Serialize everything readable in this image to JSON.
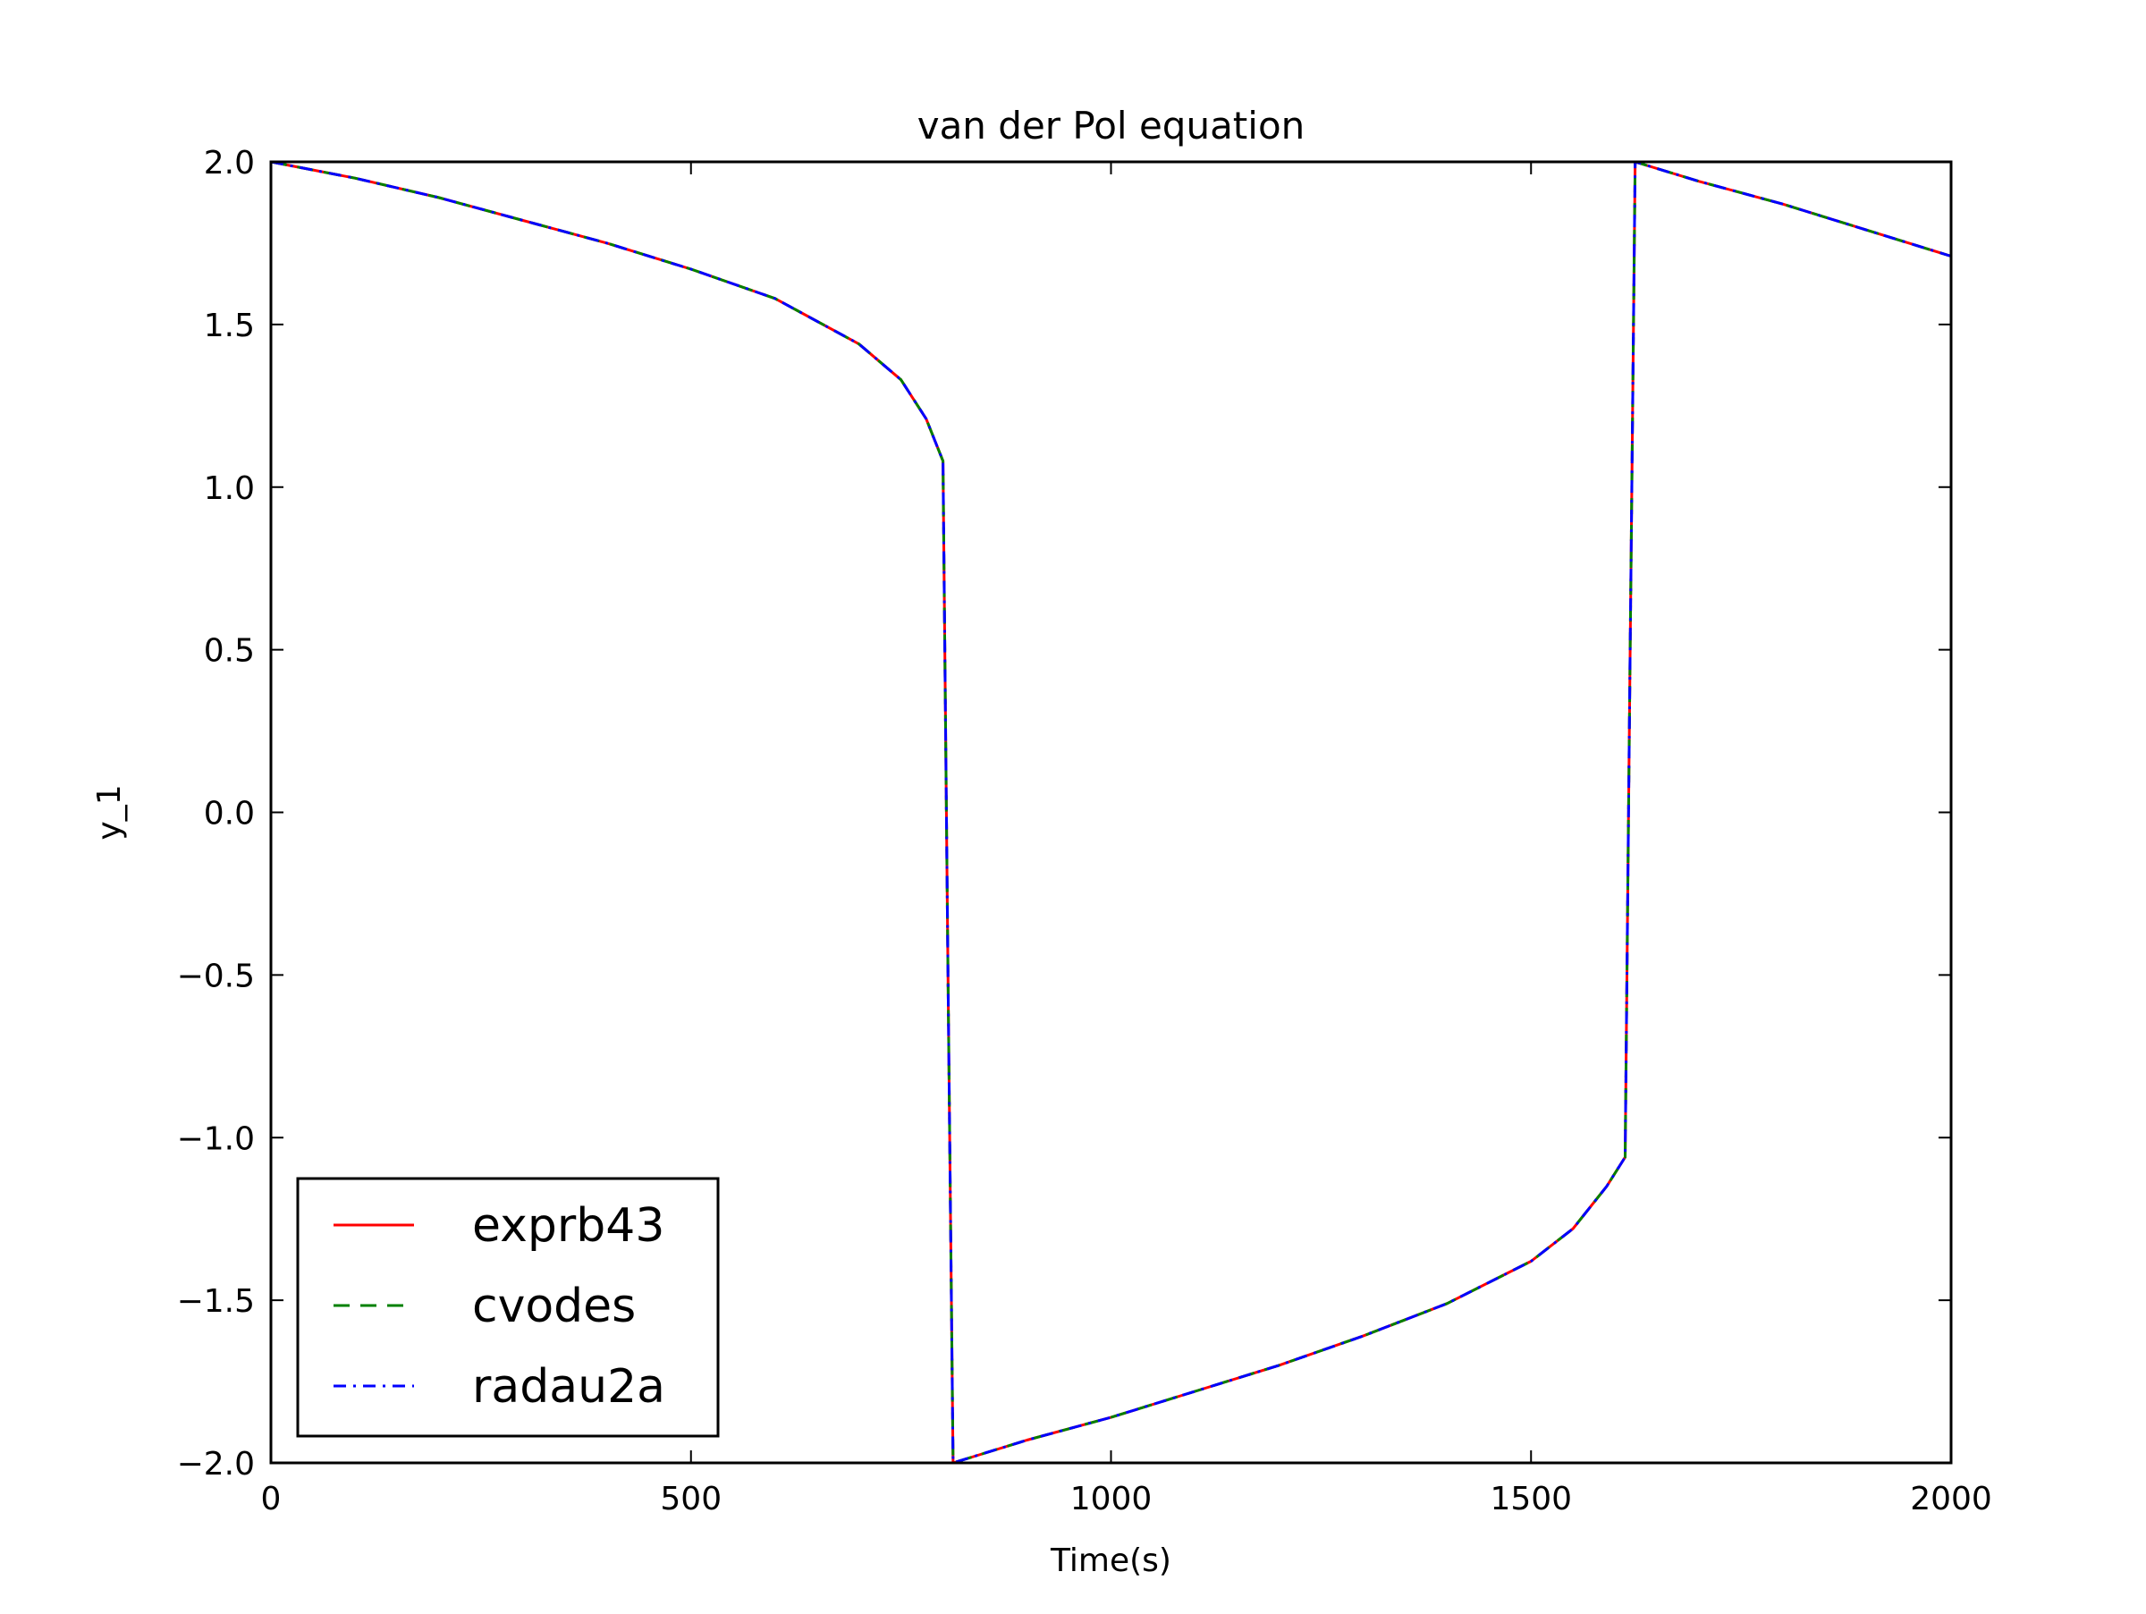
{
  "chart_data": {
    "type": "line",
    "title": "van der Pol equation",
    "xlabel": "Time(s)",
    "ylabel": "y_1",
    "xlim": [
      0,
      2000
    ],
    "ylim": [
      -2.0,
      2.0
    ],
    "x_ticks": [
      0,
      500,
      1000,
      1500,
      2000
    ],
    "x_tick_labels": [
      "0",
      "500",
      "1000",
      "1500",
      "2000"
    ],
    "y_ticks": [
      2.0,
      1.5,
      1.0,
      0.5,
      0.0,
      -0.5,
      -1.0,
      -1.5,
      -2.0
    ],
    "y_tick_labels": [
      "2.0",
      "1.5",
      "1.0",
      "0.5",
      "0.0",
      "−0.5",
      "−1.0",
      "−1.5",
      "−2.0"
    ],
    "grid": false,
    "legend_position": "lower-left",
    "x": [
      0,
      100,
      200,
      300,
      400,
      500,
      600,
      700,
      750,
      780,
      800,
      806,
      812,
      900,
      1000,
      1100,
      1200,
      1300,
      1400,
      1500,
      1550,
      1590,
      1612,
      1618,
      1624,
      1700,
      1800,
      1900,
      2000
    ],
    "series": [
      {
        "name": "exprb43",
        "color": "#ff0000",
        "style": "solid",
        "values": [
          2.0,
          1.95,
          1.89,
          1.82,
          1.75,
          1.67,
          1.58,
          1.44,
          1.33,
          1.21,
          1.08,
          -0.5,
          -2.0,
          -1.93,
          -1.86,
          -1.78,
          -1.7,
          -1.61,
          -1.51,
          -1.38,
          -1.28,
          -1.15,
          -1.06,
          0.5,
          2.0,
          1.94,
          1.87,
          1.79,
          1.71
        ]
      },
      {
        "name": "cvodes",
        "color": "#008000",
        "style": "dashed",
        "values": [
          2.0,
          1.95,
          1.89,
          1.82,
          1.75,
          1.67,
          1.58,
          1.44,
          1.33,
          1.21,
          1.08,
          -0.5,
          -2.0,
          -1.93,
          -1.86,
          -1.78,
          -1.7,
          -1.61,
          -1.51,
          -1.38,
          -1.28,
          -1.15,
          -1.06,
          0.5,
          2.0,
          1.94,
          1.87,
          1.79,
          1.71
        ]
      },
      {
        "name": "radau2a",
        "color": "#0000ff",
        "style": "dashdot",
        "values": [
          2.0,
          1.95,
          1.89,
          1.82,
          1.75,
          1.67,
          1.58,
          1.44,
          1.33,
          1.21,
          1.08,
          -0.5,
          -2.0,
          -1.93,
          -1.86,
          -1.78,
          -1.7,
          -1.61,
          -1.51,
          -1.38,
          -1.28,
          -1.15,
          -1.06,
          0.5,
          2.0,
          1.94,
          1.87,
          1.79,
          1.71
        ]
      }
    ]
  }
}
